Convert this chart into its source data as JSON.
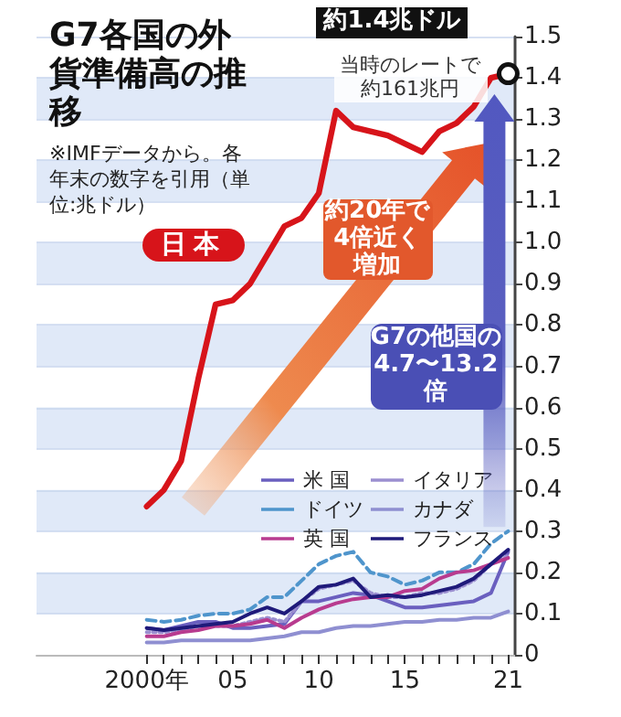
{
  "chart_data": {
    "type": "line",
    "title": "G7各国の外貨準備高の推移",
    "subtitle": "※IMFデータから。各年末の数字を引用（単位:兆ドル）",
    "x": [
      2000,
      2001,
      2002,
      2003,
      2004,
      2005,
      2006,
      2007,
      2008,
      2009,
      2010,
      2011,
      2012,
      2013,
      2014,
      2015,
      2016,
      2017,
      2018,
      2019,
      2020,
      2021
    ],
    "xlim": [
      1993.6,
      2021.4
    ],
    "xticks": [
      {
        "value": 2000,
        "label": "2000年"
      },
      {
        "value": 2001,
        "label": null
      },
      {
        "value": 2002,
        "label": null
      },
      {
        "value": 2003,
        "label": null
      },
      {
        "value": 2004,
        "label": null
      },
      {
        "value": 2005,
        "label": "05"
      },
      {
        "value": 2006,
        "label": null
      },
      {
        "value": 2007,
        "label": null
      },
      {
        "value": 2008,
        "label": null
      },
      {
        "value": 2009,
        "label": null
      },
      {
        "value": 2010,
        "label": "10"
      },
      {
        "value": 2011,
        "label": null
      },
      {
        "value": 2012,
        "label": null
      },
      {
        "value": 2013,
        "label": null
      },
      {
        "value": 2014,
        "label": null
      },
      {
        "value": 2015,
        "label": "15"
      },
      {
        "value": 2016,
        "label": null
      },
      {
        "value": 2017,
        "label": null
      },
      {
        "value": 2018,
        "label": null
      },
      {
        "value": 2019,
        "label": null
      },
      {
        "value": 2020,
        "label": null
      },
      {
        "value": 2021,
        "label": "21"
      }
    ],
    "ylim": [
      0,
      1.5
    ],
    "yticks": [
      0,
      0.1,
      0.2,
      0.3,
      0.4,
      0.5,
      0.6,
      0.7,
      0.8,
      0.9,
      {
        "value": 1,
        "label": "1.0"
      },
      1.1,
      1.2,
      1.3,
      1.4,
      1.5
    ],
    "grid": "y",
    "legend": "center right",
    "marker": "none",
    "series": [
      {
        "name": "日本",
        "color": "#d7141a",
        "line_style": "solid",
        "values": [
          0.36,
          0.4,
          0.47,
          0.67,
          0.85,
          0.86,
          0.9,
          0.97,
          1.04,
          1.06,
          1.12,
          1.32,
          1.28,
          1.27,
          1.26,
          1.24,
          1.22,
          1.27,
          1.29,
          1.33,
          1.4,
          1.41
        ]
      },
      {
        "name": "米 国",
        "color": "#6a5fbf",
        "line_style": "solid",
        "values": [
          0.065,
          0.06,
          0.07,
          0.08,
          0.08,
          0.065,
          0.065,
          0.07,
          0.075,
          0.13,
          0.13,
          0.14,
          0.15,
          0.145,
          0.13,
          0.115,
          0.115,
          0.12,
          0.125,
          0.13,
          0.15,
          0.25
        ]
      },
      {
        "name": "イタリア",
        "color": "#9b8fd0",
        "line_style": "dotted",
        "values": [
          0.055,
          0.055,
          0.06,
          0.07,
          0.07,
          0.07,
          0.08,
          0.09,
          0.08,
          0.13,
          0.16,
          0.17,
          0.18,
          0.15,
          0.14,
          0.14,
          0.15,
          0.15,
          0.16,
          0.18,
          0.22,
          0.24
        ]
      },
      {
        "name": "ドイツ",
        "color": "#4f95cc",
        "line_style": "dashed",
        "values": [
          0.085,
          0.08,
          0.085,
          0.095,
          0.1,
          0.1,
          0.11,
          0.14,
          0.14,
          0.18,
          0.22,
          0.24,
          0.25,
          0.2,
          0.19,
          0.17,
          0.18,
          0.2,
          0.2,
          0.22,
          0.27,
          0.3
        ]
      },
      {
        "name": "カナダ",
        "color": "#8f8fd1",
        "line_style": "solid",
        "values": [
          0.03,
          0.03,
          0.035,
          0.035,
          0.035,
          0.035,
          0.035,
          0.04,
          0.045,
          0.055,
          0.055,
          0.065,
          0.07,
          0.07,
          0.075,
          0.08,
          0.08,
          0.085,
          0.085,
          0.09,
          0.09,
          0.105
        ]
      },
      {
        "name": "英 国",
        "color": "#b83b8f",
        "line_style": "solid",
        "values": [
          0.045,
          0.045,
          0.055,
          0.06,
          0.07,
          0.07,
          0.075,
          0.085,
          0.065,
          0.09,
          0.11,
          0.125,
          0.135,
          0.14,
          0.14,
          0.155,
          0.16,
          0.185,
          0.2,
          0.205,
          0.22,
          0.235
        ]
      },
      {
        "name": "フランス",
        "color": "#1f1a7a",
        "line_style": "solid",
        "values": [
          0.065,
          0.06,
          0.065,
          0.07,
          0.075,
          0.08,
          0.1,
          0.115,
          0.1,
          0.13,
          0.165,
          0.17,
          0.185,
          0.14,
          0.145,
          0.14,
          0.145,
          0.155,
          0.165,
          0.185,
          0.22,
          0.255
        ]
      }
    ],
    "annotations": [
      {
        "text": "約1.4兆ドル",
        "x": 2021,
        "y": 1.41
      },
      "当時のレートで約161兆円",
      "約20年で4倍近く増加",
      "G7の他国の4.7〜13.2倍"
    ]
  }
}
